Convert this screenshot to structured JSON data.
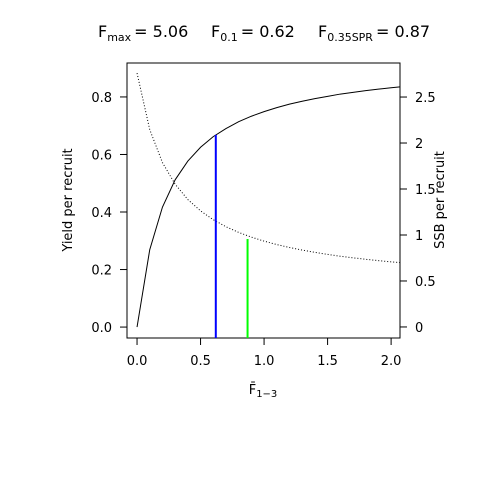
{
  "chart_data": {
    "type": "line",
    "annotations": [
      {
        "symbol": "F",
        "subscript": "max",
        "text": "= 5.06"
      },
      {
        "symbol": "F",
        "subscript": "0.1",
        "text": "= 0.62"
      },
      {
        "symbol": "F",
        "subscript": "0.35SPR",
        "text": "= 0.87"
      }
    ],
    "xlabel": "F̄",
    "xlabel_subscript": "1−3",
    "ylabel": "Yield per recruit",
    "y2label": "SSB per recruit",
    "x": [
      0,
      0.1,
      0.2,
      0.3,
      0.4,
      0.5,
      0.6,
      0.7,
      0.8,
      0.9,
      1.0,
      1.1,
      1.2,
      1.3,
      1.4,
      1.5,
      1.6,
      1.7,
      1.8,
      1.9,
      2.0,
      2.07
    ],
    "series": [
      {
        "color": "#000000",
        "linestyle": "solid",
        "values": [
          0,
          0.269,
          0.417,
          0.512,
          0.577,
          0.625,
          0.662,
          0.69,
          0.714,
          0.733,
          0.749,
          0.763,
          0.775,
          0.785,
          0.794,
          0.802,
          0.81,
          0.816,
          0.822,
          0.827,
          0.832,
          0.835
        ]
      },
      {
        "color": "#000000",
        "linestyle": "dotted",
        "axis": "y2",
        "values": [
          2.76,
          2.146,
          1.787,
          1.552,
          1.385,
          1.262,
          1.166,
          1.09,
          1.028,
          0.977,
          0.933,
          0.896,
          0.864,
          0.836,
          0.811,
          0.789,
          0.769,
          0.752,
          0.736,
          0.721,
          0.708,
          0.7
        ]
      }
    ],
    "reference_lines": [
      {
        "x": 0.62,
        "y": 0.668,
        "color": "#0000ff"
      },
      {
        "x": 0.87,
        "y": 0.957,
        "axis": "y2",
        "color": "#00ff00"
      }
    ],
    "xlim": [
      -0.079,
      2.07
    ],
    "ylim": [
      -0.038,
      0.918
    ],
    "y2lim": [
      -0.12,
      2.87
    ],
    "xticks": [
      {
        "value": 0,
        "label": "0.0"
      },
      {
        "value": 0.5,
        "label": "0.5"
      },
      {
        "value": 1,
        "label": "1.0"
      },
      {
        "value": 1.5,
        "label": "1.5"
      },
      {
        "value": 2,
        "label": "2.0"
      }
    ],
    "yticks": [
      {
        "value": 0,
        "label": "0.0"
      },
      {
        "value": 0.2,
        "label": "0.2"
      },
      {
        "value": 0.4,
        "label": "0.4"
      },
      {
        "value": 0.6,
        "label": "0.6"
      },
      {
        "value": 0.8,
        "label": "0.8"
      }
    ],
    "y2ticks": [
      0,
      0.5,
      1,
      1.5,
      2,
      2.5
    ],
    "grid": false
  }
}
